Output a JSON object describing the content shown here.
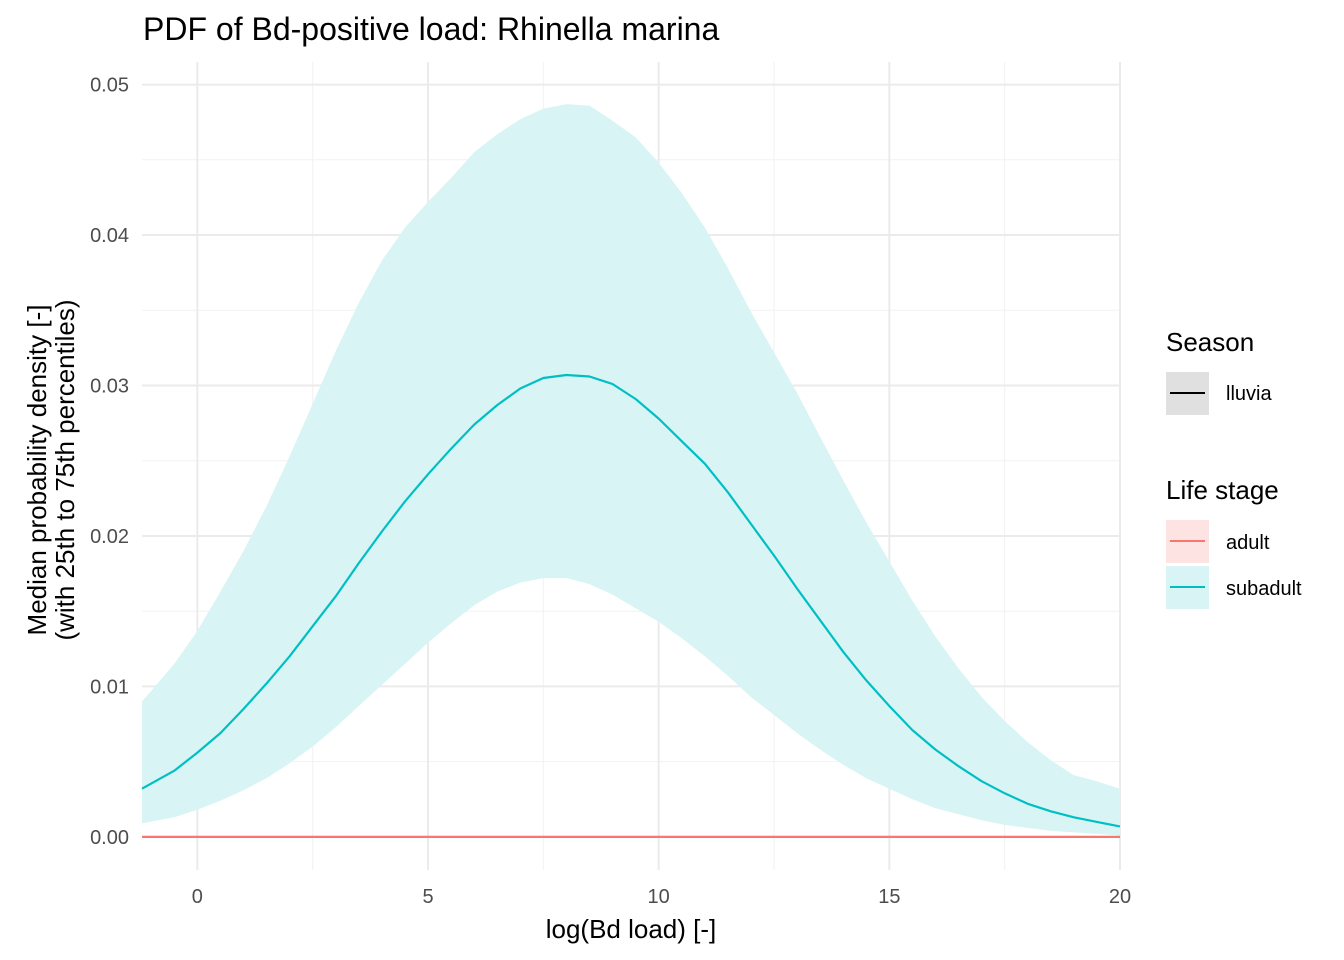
{
  "chart_data": {
    "type": "line",
    "title": "PDF of Bd-positive load: Rhinella marina",
    "xlabel": "log(Bd load) [-]",
    "ylabel": [
      "Median probability density [-]",
      "(with 25th to 75th percentiles)"
    ],
    "xlim": [
      -1.2,
      20
    ],
    "ylim": [
      0,
      0.05
    ],
    "x_ticks": [
      0,
      5,
      10,
      15,
      20
    ],
    "y_ticks": [
      0.0,
      0.01,
      0.02,
      0.03,
      0.04,
      0.05
    ],
    "x_tick_labels": [
      "0",
      "5",
      "10",
      "15",
      "20"
    ],
    "y_tick_labels": [
      "0.00",
      "0.01",
      "0.02",
      "0.03",
      "0.04",
      "0.05"
    ],
    "grid": true,
    "legend_position": "right",
    "legend": {
      "season": {
        "title": "Season",
        "items": [
          {
            "label": "lluvia"
          }
        ]
      },
      "life_stage": {
        "title": "Life stage",
        "items": [
          {
            "label": "adult",
            "color": "#F8766D",
            "fill": "#FDE4E2"
          },
          {
            "label": "subadult",
            "color": "#00BFC4",
            "fill": "#D9F4F5"
          }
        ]
      }
    },
    "series": [
      {
        "name": "adult",
        "color": "#F8766D",
        "x": [
          -1.2,
          20
        ],
        "median": [
          0.0,
          0.0
        ],
        "lower": [
          0.0,
          0.0
        ],
        "upper": [
          0.0,
          0.0
        ]
      },
      {
        "name": "subadult",
        "color": "#00BFC4",
        "band_fill": "#D9F4F5",
        "x": [
          -1.2,
          -0.5,
          0,
          0.5,
          1,
          1.5,
          2,
          2.5,
          3,
          3.5,
          4,
          4.5,
          5,
          5.5,
          6,
          6.5,
          7,
          7.5,
          8,
          8.5,
          9,
          9.5,
          10,
          10.5,
          11,
          11.5,
          12,
          12.5,
          13,
          13.5,
          14,
          14.5,
          15,
          15.5,
          16,
          16.5,
          17,
          17.5,
          18,
          18.5,
          19,
          19.5,
          20
        ],
        "median": [
          0.0032,
          0.0044,
          0.0056,
          0.0069,
          0.0085,
          0.0102,
          0.012,
          0.014,
          0.016,
          0.0182,
          0.0203,
          0.0223,
          0.0241,
          0.0258,
          0.0274,
          0.0287,
          0.0298,
          0.0305,
          0.0307,
          0.0306,
          0.0301,
          0.0291,
          0.0278,
          0.0263,
          0.0248,
          0.0229,
          0.0208,
          0.0187,
          0.0165,
          0.0144,
          0.0123,
          0.0104,
          0.0087,
          0.0071,
          0.0058,
          0.0047,
          0.0037,
          0.0029,
          0.0022,
          0.0017,
          0.0013,
          0.001,
          0.0007
        ],
        "lower": [
          0.0009,
          0.0013,
          0.0018,
          0.0024,
          0.0031,
          0.0039,
          0.0049,
          0.006,
          0.0073,
          0.0087,
          0.0101,
          0.0115,
          0.0129,
          0.0142,
          0.0154,
          0.0163,
          0.0169,
          0.0172,
          0.0172,
          0.0168,
          0.0161,
          0.0152,
          0.0143,
          0.0132,
          0.012,
          0.0107,
          0.0093,
          0.0081,
          0.0069,
          0.0058,
          0.0048,
          0.0039,
          0.0032,
          0.0025,
          0.0019,
          0.0015,
          0.0011,
          0.0008,
          0.0006,
          0.0004,
          0.0003,
          0.0002,
          0.0001
        ],
        "upper": [
          0.009,
          0.0115,
          0.0137,
          0.0163,
          0.019,
          0.022,
          0.0253,
          0.0288,
          0.0323,
          0.0355,
          0.0383,
          0.0405,
          0.0422,
          0.0438,
          0.0455,
          0.0467,
          0.0477,
          0.0484,
          0.0487,
          0.0486,
          0.0476,
          0.0465,
          0.0448,
          0.0428,
          0.0405,
          0.0378,
          0.0349,
          0.0322,
          0.0295,
          0.0266,
          0.0237,
          0.0209,
          0.0183,
          0.0157,
          0.0133,
          0.0112,
          0.0093,
          0.0077,
          0.0063,
          0.0051,
          0.0041,
          0.0037,
          0.0032
        ]
      }
    ]
  }
}
